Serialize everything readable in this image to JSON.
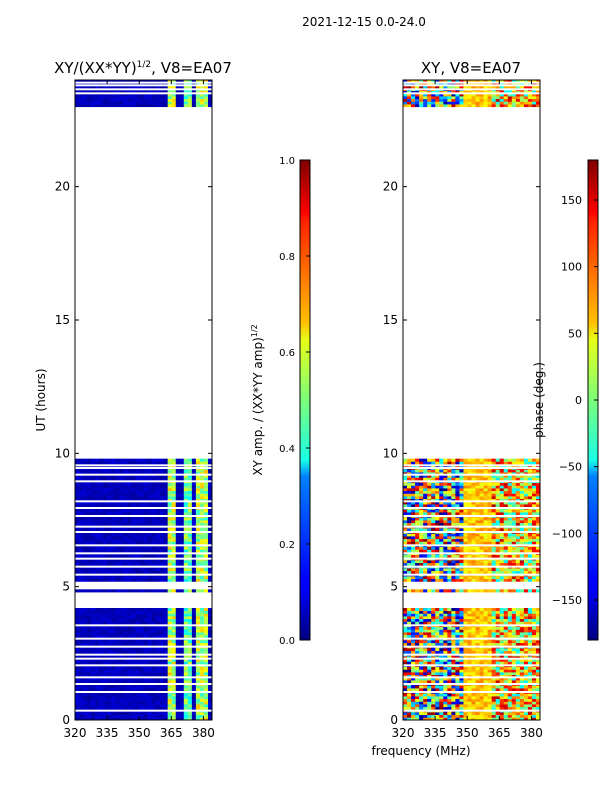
{
  "figure": {
    "suptitle": "2021-12-15 0.0-24.0",
    "shared_xlabel": "frequency (MHz)"
  },
  "chart_data": [
    {
      "type": "heatmap",
      "title_prefix": "XY/(XX*YY)",
      "title_exponent": "1/2",
      "title_suffix": ", V8=EA07",
      "xlabel": "",
      "ylabel": "UT (hours)",
      "xlim": [
        320,
        384
      ],
      "ylim": [
        0,
        24
      ],
      "xticks": [
        320,
        335,
        350,
        365,
        380
      ],
      "yticks": [
        0,
        5,
        10,
        15,
        20
      ],
      "colorbar": {
        "label_prefix": "XY amp. / (XX*YY amp)",
        "label_exponent": "1/2",
        "vmin": 0.0,
        "vmax": 1.0,
        "ticks": [
          "0.0",
          "0.2",
          "0.4",
          "0.6",
          "0.8",
          "1.0"
        ],
        "tick_values": [
          0.0,
          0.2,
          0.4,
          0.6,
          0.8,
          1.0
        ],
        "colormap": "jet"
      },
      "data_time_ranges_hours": [
        [
          0.0,
          4.2
        ],
        [
          4.8,
          4.9
        ],
        [
          5.2,
          9.75
        ],
        [
          23.0,
          24.0
        ]
      ],
      "gap_hours": [
        0.35,
        1.05,
        1.35,
        1.6,
        2.05,
        2.3,
        2.45,
        2.75,
        3.05,
        3.55,
        5.45,
        5.75,
        6.05,
        6.25,
        6.55,
        7.05,
        7.25,
        7.65,
        7.95,
        8.2,
        8.95,
        9.2,
        9.45,
        9.55,
        23.5,
        23.65,
        23.8,
        23.9
      ],
      "description_values": {
        "background_level": 0.05,
        "band_365_level": 0.55,
        "band_372_level": 0.5,
        "band_379_level": 0.55
      }
    },
    {
      "type": "heatmap",
      "title": "XY, V8=EA07",
      "xlabel": "",
      "ylabel": "",
      "xlim": [
        320,
        384
      ],
      "ylim": [
        0,
        24
      ],
      "xticks": [
        320,
        335,
        350,
        365,
        380
      ],
      "yticks": [
        0,
        5,
        10,
        15,
        20
      ],
      "colorbar": {
        "label": "phase (deg.)",
        "vmin": -180,
        "vmax": 180,
        "ticks": [
          "−150",
          "−100",
          "−50",
          "0",
          "50",
          "100",
          "150"
        ],
        "tick_values": [
          -150,
          -100,
          -50,
          0,
          50,
          100,
          150
        ],
        "colormap": "jet"
      },
      "data_time_ranges_hours": [
        [
          0.0,
          4.2
        ],
        [
          4.8,
          4.9
        ],
        [
          5.2,
          9.75
        ],
        [
          23.0,
          24.0
        ]
      ],
      "gap_hours": [
        0.35,
        1.05,
        1.35,
        1.6,
        2.05,
        2.3,
        2.45,
        2.75,
        3.05,
        3.55,
        5.45,
        5.75,
        6.05,
        6.25,
        6.55,
        7.05,
        7.25,
        7.65,
        7.95,
        8.2,
        8.95,
        9.2,
        9.45,
        9.55,
        23.5,
        23.65,
        23.8,
        23.9
      ]
    }
  ]
}
